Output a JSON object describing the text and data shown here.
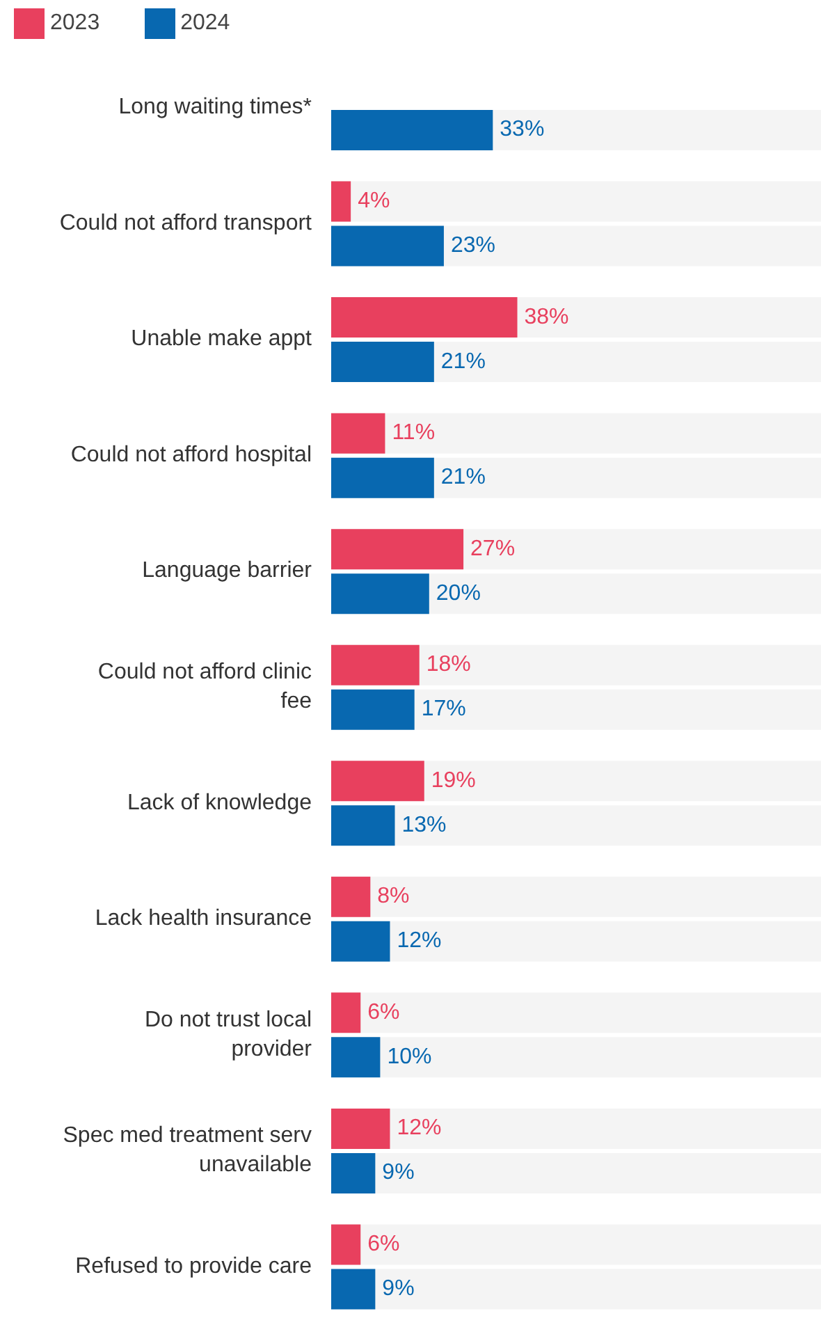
{
  "chart_data": {
    "type": "bar",
    "orientation": "horizontal",
    "categories": [
      "Long waiting times*",
      "Could not afford transport",
      "Unable make appt",
      "Could not afford hospital",
      "Language barrier",
      "Could not afford clinic fee",
      "Lack of knowledge",
      "Lack health insurance",
      "Do not trust local provider",
      "Spec med treatment serv unavailable",
      "Refused to provide care"
    ],
    "series": [
      {
        "name": "2023",
        "color": "#e8405e",
        "values": [
          null,
          4,
          38,
          11,
          27,
          18,
          19,
          8,
          6,
          12,
          6
        ],
        "value_labels": [
          null,
          "4%",
          "38%",
          "11%",
          "27%",
          "18%",
          "19%",
          "8%",
          "6%",
          "12%",
          "6%"
        ]
      },
      {
        "name": "2024",
        "color": "#0868b0",
        "values": [
          33,
          23,
          21,
          21,
          20,
          17,
          13,
          12,
          10,
          9,
          9
        ],
        "value_labels": [
          "33%",
          "23%",
          "21%",
          "21%",
          "20%",
          "17%",
          "13%",
          "12%",
          "10%",
          "9%",
          "9%"
        ]
      }
    ],
    "xlim": [
      0,
      100
    ],
    "tick_labels": "y",
    "legend": "top left"
  }
}
